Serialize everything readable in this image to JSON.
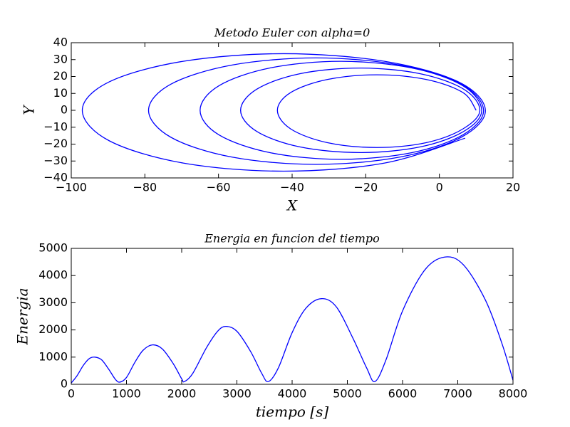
{
  "chart_data": [
    {
      "type": "line",
      "title": "Metodo Euler con alpha=0",
      "x_label": "X",
      "y_label": "Y",
      "color": "#0000ff",
      "x": [
        10,
        6.4,
        -3.5,
        -17,
        -30.5,
        -40.4,
        -44,
        -40.4,
        -30.5,
        -17,
        -3.5,
        6.4,
        11,
        6.6,
        -5.3,
        -21.5,
        -37.8,
        -49.6,
        -54,
        -49.6,
        -37.8,
        -21.5,
        -5.3,
        6.6,
        11.5,
        6.4,
        -7.6,
        -26.8,
        -45.9,
        -59.9,
        -65,
        -59.9,
        -45.9,
        -26.8,
        -7.6,
        6.4,
        12,
        5.9,
        -10.8,
        -33.5,
        -56.3,
        -72.9,
        -79,
        -72.9,
        -56.3,
        -33.5,
        -10.8,
        5.9,
        12.5,
        5.2,
        -14.9,
        -42.3,
        -69.6,
        -89.7,
        -97,
        -89.7,
        -69.6,
        -42.3,
        -14.9,
        7
      ],
      "values": [
        0,
        10.5,
        18.2,
        21,
        18.2,
        10.5,
        0,
        -11,
        -19.1,
        -22,
        -19.1,
        -11,
        0,
        12.5,
        21.7,
        25,
        21.7,
        12.5,
        0,
        -12.5,
        -21.7,
        -25,
        -21.7,
        -12.5,
        0,
        14.5,
        25.1,
        29,
        25.1,
        14.5,
        0,
        -14.5,
        -25.1,
        -29,
        -25.1,
        -14.5,
        0,
        15.5,
        26.8,
        31,
        26.8,
        15.5,
        0,
        -16,
        -27.7,
        -32,
        -27.7,
        -16,
        0,
        16.8,
        29,
        33.5,
        29,
        16.8,
        0,
        -18,
        -31.2,
        -36,
        -31.2,
        -16.5
      ],
      "xlim": [
        -100,
        20
      ],
      "xticks": [
        {
          "value": -100,
          "label": "−100"
        },
        {
          "value": -80,
          "label": "−80"
        },
        {
          "value": -60,
          "label": "−60"
        },
        {
          "value": -40,
          "label": "−40"
        },
        {
          "value": -20,
          "label": "−20"
        },
        0,
        20
      ],
      "ylim": [
        -40,
        40
      ],
      "yticks": [
        {
          "value": -40,
          "label": "−40"
        },
        {
          "value": -30,
          "label": "−30"
        },
        {
          "value": -20,
          "label": "−20"
        },
        {
          "value": -10,
          "label": "−10"
        },
        0,
        10,
        20,
        30,
        40
      ]
    },
    {
      "type": "line",
      "title": "Energia en funcion del tiempo",
      "x_label": "tiempo [s]",
      "y_label": "Energia",
      "color": "#0000ff",
      "x": [
        0,
        100,
        220,
        330,
        430,
        550,
        680,
        800,
        880,
        1000,
        1150,
        1300,
        1470,
        1650,
        1850,
        2000,
        2050,
        2200,
        2450,
        2650,
        2800,
        3000,
        3250,
        3450,
        3570,
        3750,
        4000,
        4250,
        4530,
        4800,
        5100,
        5350,
        5500,
        5700,
        6000,
        6400,
        6760,
        7100,
        7500,
        7800,
        8000
      ],
      "values": [
        50,
        300,
        700,
        950,
        1000,
        900,
        550,
        180,
        80,
        250,
        800,
        1250,
        1450,
        1300,
        750,
        200,
        100,
        400,
        1350,
        1950,
        2130,
        1950,
        1200,
        400,
        100,
        600,
        1900,
        2800,
        3150,
        2850,
        1700,
        600,
        100,
        900,
        2700,
        4200,
        4680,
        4400,
        3100,
        1500,
        150
      ],
      "xlim": [
        0,
        8000
      ],
      "xticks": [
        0,
        1000,
        2000,
        3000,
        4000,
        5000,
        6000,
        7000,
        8000
      ],
      "ylim": [
        0,
        5000
      ],
      "yticks": [
        0,
        1000,
        2000,
        3000,
        4000,
        5000
      ]
    }
  ]
}
